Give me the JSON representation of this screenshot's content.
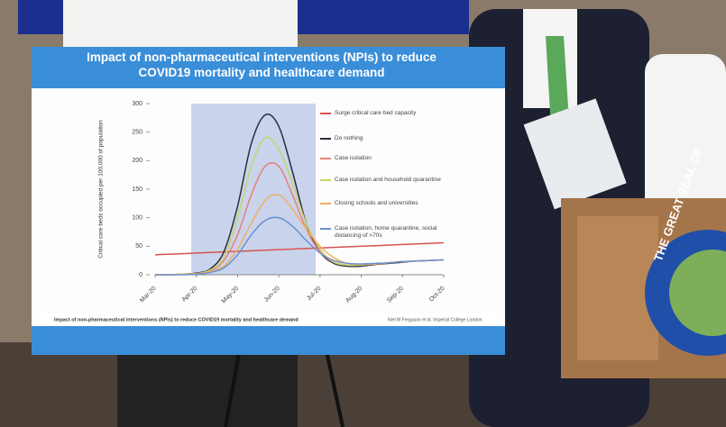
{
  "chart_data": {
    "type": "line",
    "title": "Impact of non-pharmaceutical interventions (NPIs) to reduce COVID19 mortality and healthcare demand",
    "y_label": "Critical care beds occupied per 100,000 of population",
    "caption": "Impact of non-pharmaceutical interventions (NPIs) to reduce COVID19 mortality and healthcare demand",
    "source": "Neil M Ferguson et al. Imperial College London",
    "categories": [
      "Mar-20",
      null,
      null,
      "Apr-20",
      null,
      null,
      "May-20",
      null,
      null,
      "Jun-20",
      null,
      null,
      "Jul-20",
      null,
      null,
      "Aug-20",
      null,
      null,
      "Sep-20",
      null,
      null,
      "Oct-20"
    ],
    "series": [
      {
        "name": "Surge critical care bed capacity",
        "color": "#d9534f",
        "values": [
          35,
          36,
          37,
          38,
          39,
          40,
          41,
          42,
          43,
          44,
          45,
          46,
          47,
          48,
          49,
          50,
          51,
          52,
          53,
          54,
          55,
          56
        ]
      },
      {
        "name": "Do nothing",
        "color": "#2b2d3c",
        "values": [
          0,
          0,
          1,
          3,
          10,
          40,
          120,
          230,
          280,
          260,
          180,
          90,
          40,
          20,
          15,
          15,
          18,
          20,
          22,
          24,
          25,
          26
        ]
      },
      {
        "name": "Case isolation",
        "color": "#e8807a",
        "values": [
          0,
          0,
          1,
          2,
          6,
          25,
          70,
          140,
          190,
          190,
          140,
          80,
          40,
          22,
          17,
          17,
          19,
          21,
          23,
          24,
          25,
          26
        ]
      },
      {
        "name": "Case isolation and household quarantine",
        "color": "#c5d56a",
        "values": [
          0,
          0,
          1,
          2,
          8,
          30,
          100,
          190,
          240,
          220,
          160,
          90,
          45,
          22,
          17,
          17,
          19,
          21,
          23,
          24,
          25,
          26
        ]
      },
      {
        "name": "Closing schools and universities",
        "color": "#f0b060",
        "values": [
          0,
          0,
          1,
          2,
          5,
          15,
          45,
          90,
          130,
          140,
          115,
          80,
          50,
          30,
          20,
          18,
          19,
          21,
          23,
          24,
          25,
          26
        ]
      },
      {
        "name": "Case isolation, home quarantine, social distancing of >70s",
        "color": "#6a8fd0",
        "values": [
          0,
          0,
          0,
          1,
          4,
          12,
          35,
          70,
          95,
          100,
          85,
          60,
          38,
          25,
          20,
          19,
          20,
          21,
          23,
          24,
          25,
          26
        ]
      }
    ],
    "ylim": [
      0,
      300
    ],
    "yticks": [
      0,
      50,
      100,
      150,
      200,
      250,
      300
    ]
  },
  "scene": {
    "seal_text": "THE GREAT SEAL OF"
  }
}
